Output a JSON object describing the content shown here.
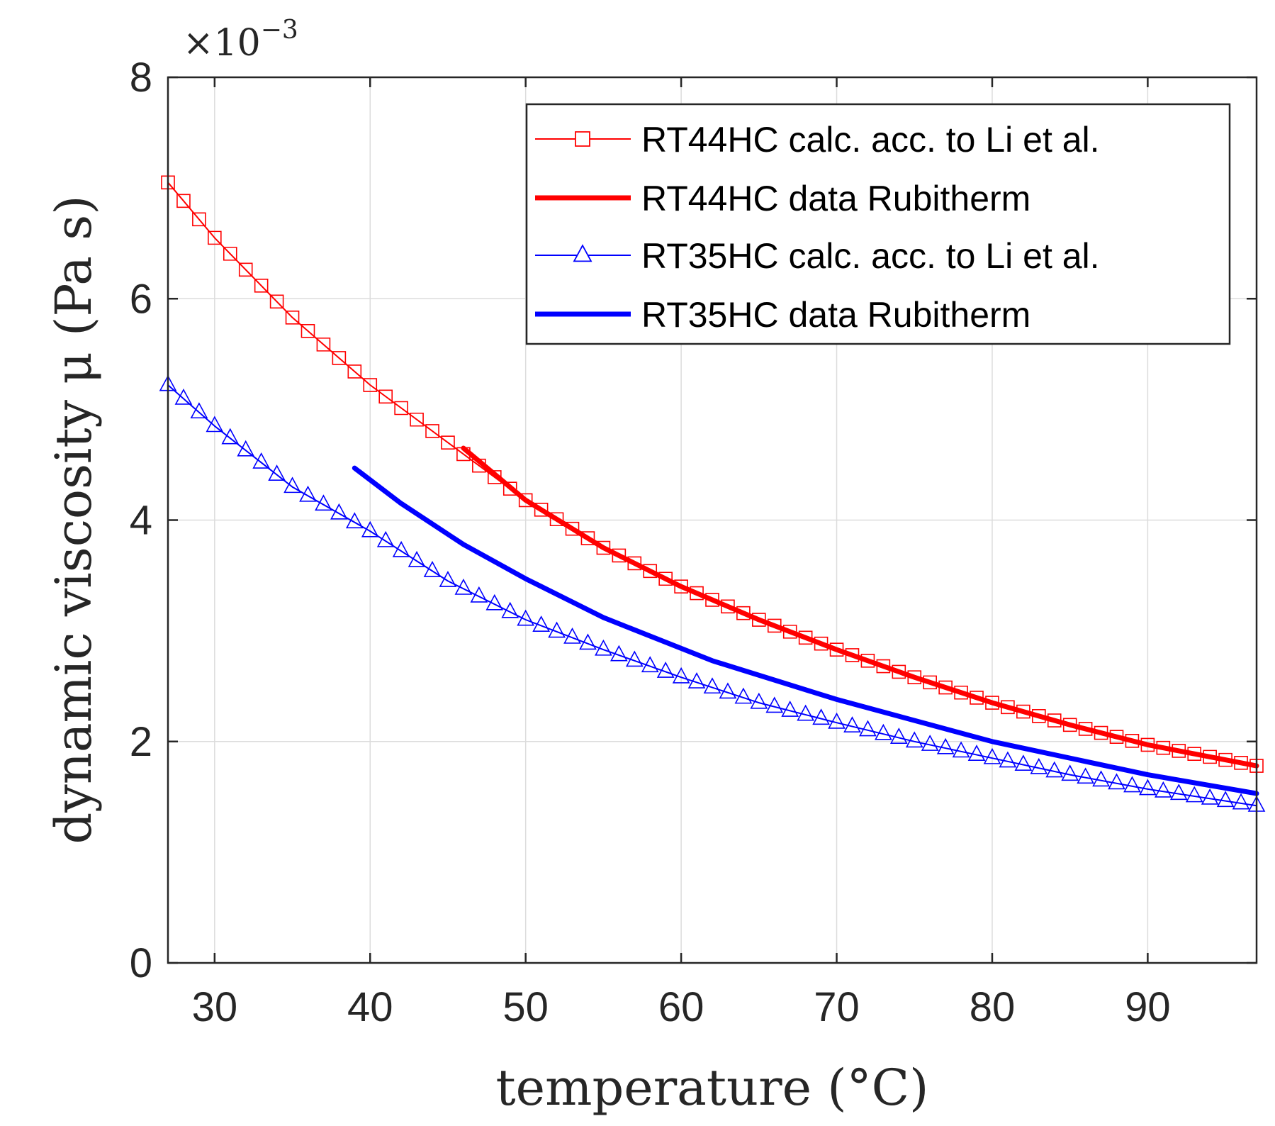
{
  "chart_data": {
    "type": "line",
    "xlabel": "temperature (°C)",
    "ylabel": "dynamic viscosity μ (Pa s)",
    "y_exponent_label": "×10",
    "y_exponent_power": "−3",
    "xlim": [
      27,
      97
    ],
    "ylim": [
      0,
      8
    ],
    "xticks": [
      30,
      40,
      50,
      60,
      70,
      80,
      90
    ],
    "yticks": [
      0,
      2,
      4,
      6,
      8
    ],
    "grid": true,
    "legend_position": "top-right",
    "series": [
      {
        "name": "RT44HC calc. acc. to Li et al.",
        "style": "thin-line-square-markers",
        "color": "#ff0000",
        "x": [
          27,
          30,
          35,
          40,
          45,
          50,
          55,
          60,
          65,
          70,
          75,
          80,
          85,
          90,
          97
        ],
        "values": [
          7.05,
          6.55,
          5.83,
          5.22,
          4.7,
          4.18,
          3.75,
          3.4,
          3.1,
          2.83,
          2.58,
          2.35,
          2.15,
          1.97,
          1.78
        ]
      },
      {
        "name": "RT44HC data Rubitherm",
        "style": "thick-line",
        "color": "#ff0000",
        "x": [
          46,
          50,
          55,
          60,
          65,
          70,
          75,
          80,
          85,
          90,
          97
        ],
        "values": [
          4.65,
          4.18,
          3.75,
          3.4,
          3.1,
          2.83,
          2.58,
          2.35,
          2.15,
          1.97,
          1.78
        ]
      },
      {
        "name": "RT35HC calc. acc. to Li et al.",
        "style": "thin-line-triangle-markers",
        "color": "#0000ff",
        "x": [
          27,
          30,
          35,
          40,
          45,
          50,
          55,
          60,
          65,
          70,
          75,
          80,
          85,
          90,
          97
        ],
        "values": [
          5.22,
          4.85,
          4.3,
          3.9,
          3.45,
          3.1,
          2.83,
          2.58,
          2.35,
          2.17,
          2.0,
          1.85,
          1.7,
          1.57,
          1.42
        ]
      },
      {
        "name": "RT35HC data Rubitherm",
        "style": "thick-line",
        "color": "#0000ff",
        "x": [
          39,
          42,
          46,
          50,
          55,
          62,
          70,
          80,
          90,
          97
        ],
        "values": [
          4.47,
          4.15,
          3.78,
          3.47,
          3.12,
          2.73,
          2.38,
          2.0,
          1.7,
          1.53
        ]
      }
    ]
  }
}
